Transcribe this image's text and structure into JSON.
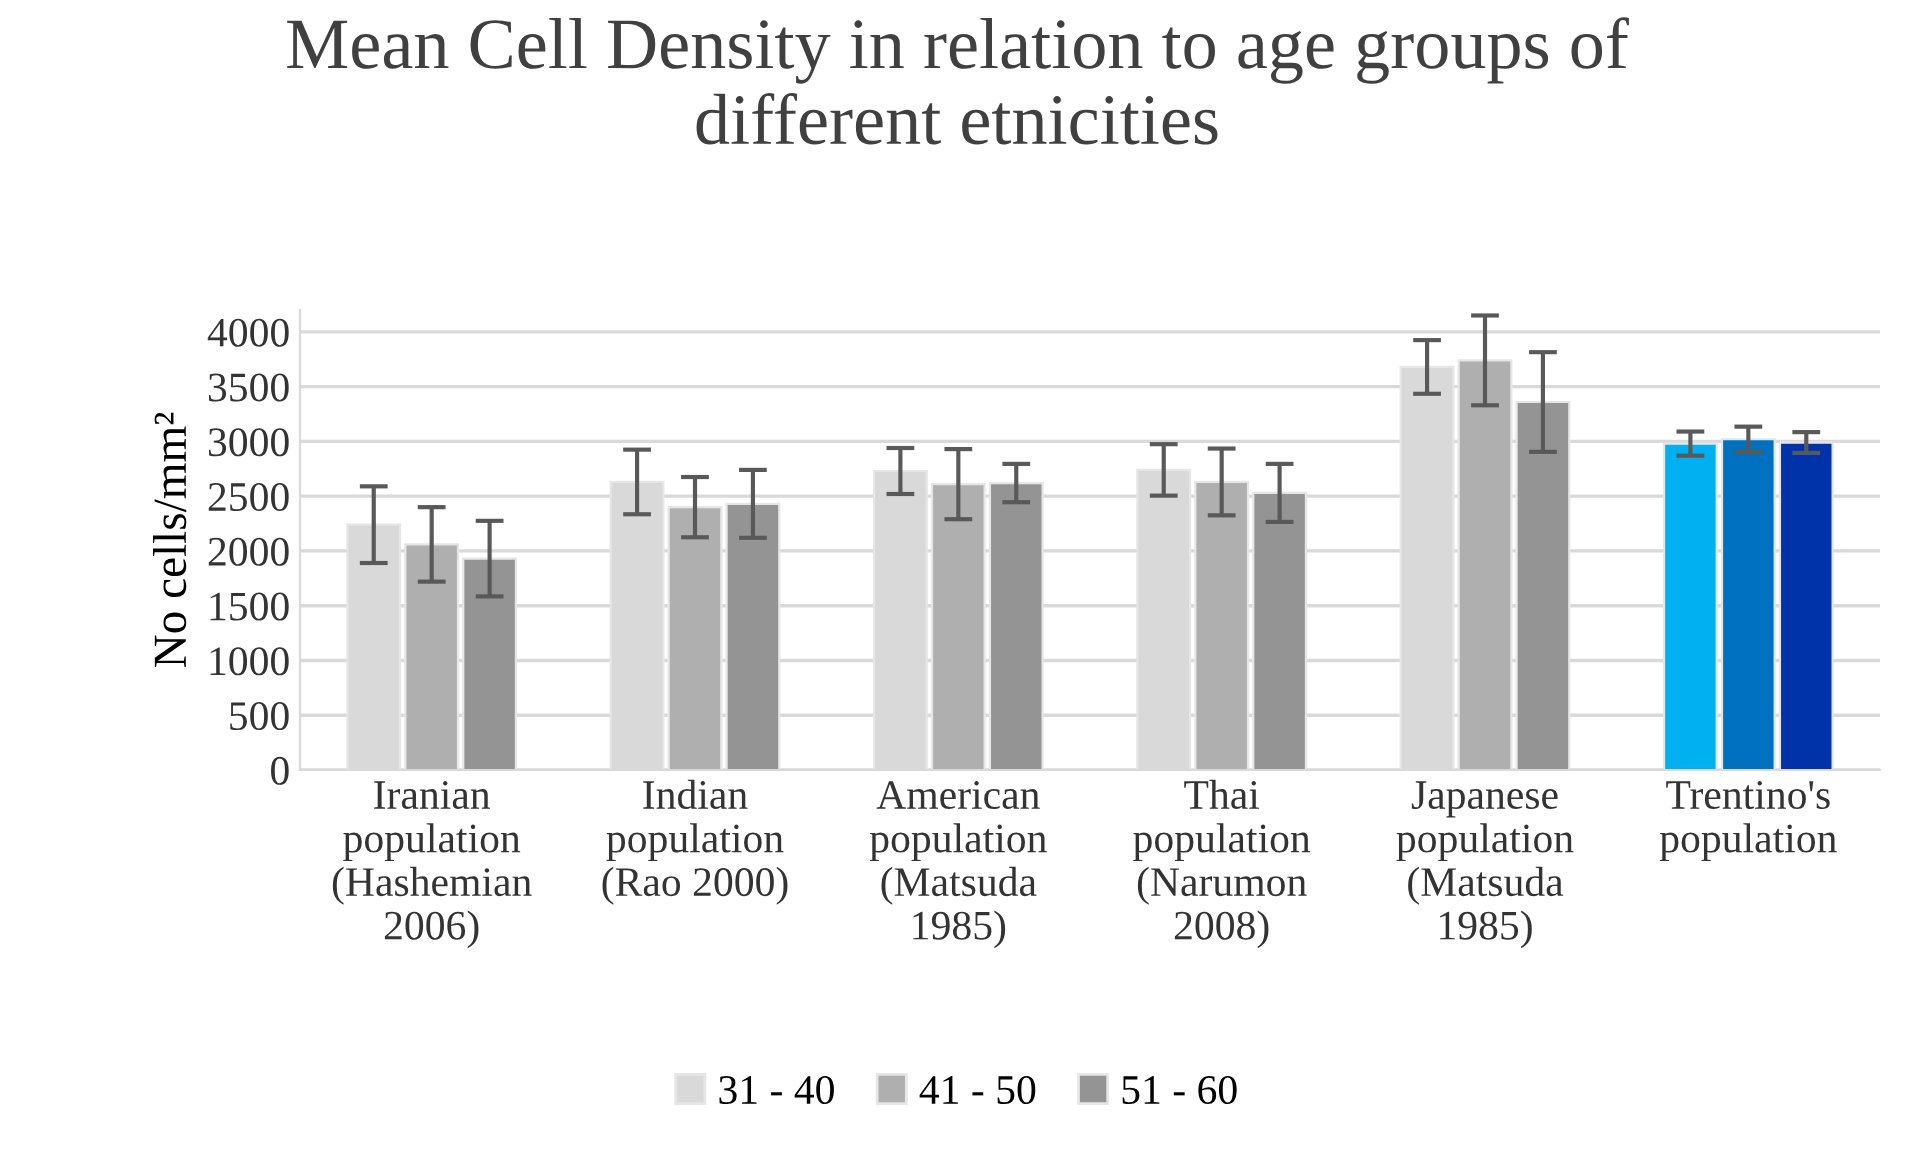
{
  "chart_data": {
    "type": "bar",
    "title": "Mean Cell Density in relation to age groups of\ndifferent etnicities",
    "ylabel": "No cells/mm²",
    "categories": [
      "Iranian\npopulation\n(Hashemian\n2006)",
      "Indian\npopulation\n(Rao 2000)",
      "American\npopulation\n(Matsuda\n1985)",
      "Thai\npopulation\n(Narumon\n2008)",
      "Japanese\npopulation\n(Matsuda\n1985)",
      "Trentino's\npopulation"
    ],
    "series": [
      {
        "name": "31 - 40",
        "color": "#d9d9d9",
        "colors": [
          "#d9d9d9",
          "#d9d9d9",
          "#d9d9d9",
          "#d9d9d9",
          "#d9d9d9",
          "#00b0f0"
        ],
        "values": [
          2240,
          2630,
          2730,
          2740,
          3680,
          2980
        ],
        "errors": [
          350,
          295,
          210,
          235,
          245,
          110
        ]
      },
      {
        "name": "41 - 50",
        "color": "#afafaf",
        "colors": [
          "#afafaf",
          "#afafaf",
          "#afafaf",
          "#afafaf",
          "#afafaf",
          "#0070c0"
        ],
        "values": [
          2060,
          2400,
          2610,
          2630,
          3740,
          3020
        ],
        "errors": [
          340,
          275,
          320,
          305,
          410,
          115
        ]
      },
      {
        "name": "51 - 60",
        "color": "#949494",
        "colors": [
          "#949494",
          "#949494",
          "#949494",
          "#949494",
          "#949494",
          "#0033aa"
        ],
        "values": [
          1930,
          2430,
          2620,
          2530,
          3360,
          2990
        ],
        "errors": [
          345,
          310,
          175,
          265,
          455,
          95
        ]
      }
    ],
    "ylim": [
      0,
      4200
    ],
    "yticks": [
      0,
      500,
      1000,
      1500,
      2000,
      2500,
      3000,
      3500,
      4000
    ],
    "grid": "y",
    "legend": "bottom"
  }
}
